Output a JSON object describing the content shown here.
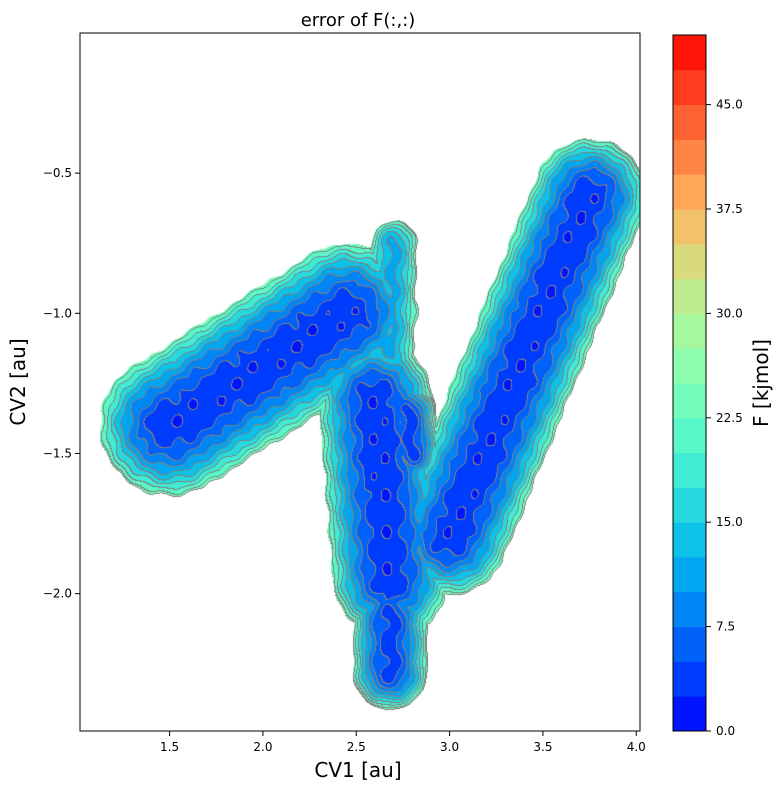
{
  "chart_data": {
    "type": "heatmap",
    "subtype": "filled-contour",
    "title": "error of F(:,:)",
    "xlabel": "CV1 [au]",
    "ylabel": "CV2 [au]",
    "xlim": [
      1.02,
      4.02
    ],
    "ylim": [
      -2.49,
      0.0
    ],
    "xticks": [
      "1.5",
      "2.0",
      "2.5",
      "3.0",
      "3.5",
      "4.0"
    ],
    "xtick_values": [
      1.5,
      2.0,
      2.5,
      3.0,
      3.5,
      4.0
    ],
    "yticks": [
      "−0.5",
      "−1.0",
      "−1.5",
      "−2.0"
    ],
    "ytick_values": [
      -0.5,
      -1.0,
      -1.5,
      -2.0
    ],
    "colorbar": {
      "label": "F [kjmol]",
      "colormap": "rainbow",
      "range": [
        0,
        50
      ],
      "level_step": 2.5,
      "ticks": [
        "0.0",
        "7.5",
        "15.0",
        "22.5",
        "30.0",
        "37.5",
        "45.0"
      ],
      "tick_values": [
        0,
        7.5,
        15,
        22.5,
        30,
        37.5,
        45
      ]
    },
    "contour_line_color": "#808080",
    "grid": false,
    "basins": [
      {
        "from": [
          1.5,
          -1.4
        ],
        "to": [
          2.45,
          -1.0
        ],
        "min": 3
      },
      {
        "from": [
          2.6,
          -1.3
        ],
        "to": [
          2.68,
          -1.95
        ],
        "min": 3
      },
      {
        "from": [
          2.68,
          -2.08
        ],
        "to": [
          2.68,
          -2.28
        ],
        "min": 4
      },
      {
        "from": [
          2.78,
          -1.35
        ],
        "to": [
          2.8,
          -1.5
        ],
        "min": 4
      },
      {
        "from": [
          3.0,
          -1.8
        ],
        "to": [
          3.75,
          -0.58
        ],
        "min": 3
      },
      {
        "from": [
          2.7,
          -0.75
        ],
        "to": [
          2.68,
          -1.15
        ],
        "min": 12
      }
    ]
  }
}
